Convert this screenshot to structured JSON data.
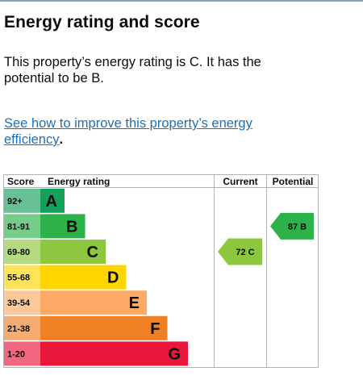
{
  "heading": "Energy rating and score",
  "summary": "This property’s energy rating is C. It has the potential to be B.",
  "link": {
    "text": "See how to improve this property’s energy efficiency",
    "trail": "."
  },
  "chart_data": {
    "type": "bar",
    "headers": {
      "score": "Score",
      "rating": "Energy rating",
      "current": "Current",
      "potential": "Potential"
    },
    "bands": [
      {
        "score": "92+",
        "letter": "A",
        "color": "#15a05c"
      },
      {
        "score": "81-91",
        "letter": "B",
        "color": "#2db14a"
      },
      {
        "score": "69-80",
        "letter": "C",
        "color": "#8dc63f"
      },
      {
        "score": "55-68",
        "letter": "D",
        "color": "#ffd500"
      },
      {
        "score": "39-54",
        "letter": "E",
        "color": "#fcaa65"
      },
      {
        "score": "21-38",
        "letter": "F",
        "color": "#ef8023"
      },
      {
        "score": "1-20",
        "letter": "G",
        "color": "#e9153b"
      }
    ],
    "current": {
      "value": 72,
      "letter": "C",
      "label": "72 C",
      "color": "#8dc63f"
    },
    "potential": {
      "value": 87,
      "letter": "B",
      "label": "87 B",
      "color": "#2db14a"
    }
  }
}
